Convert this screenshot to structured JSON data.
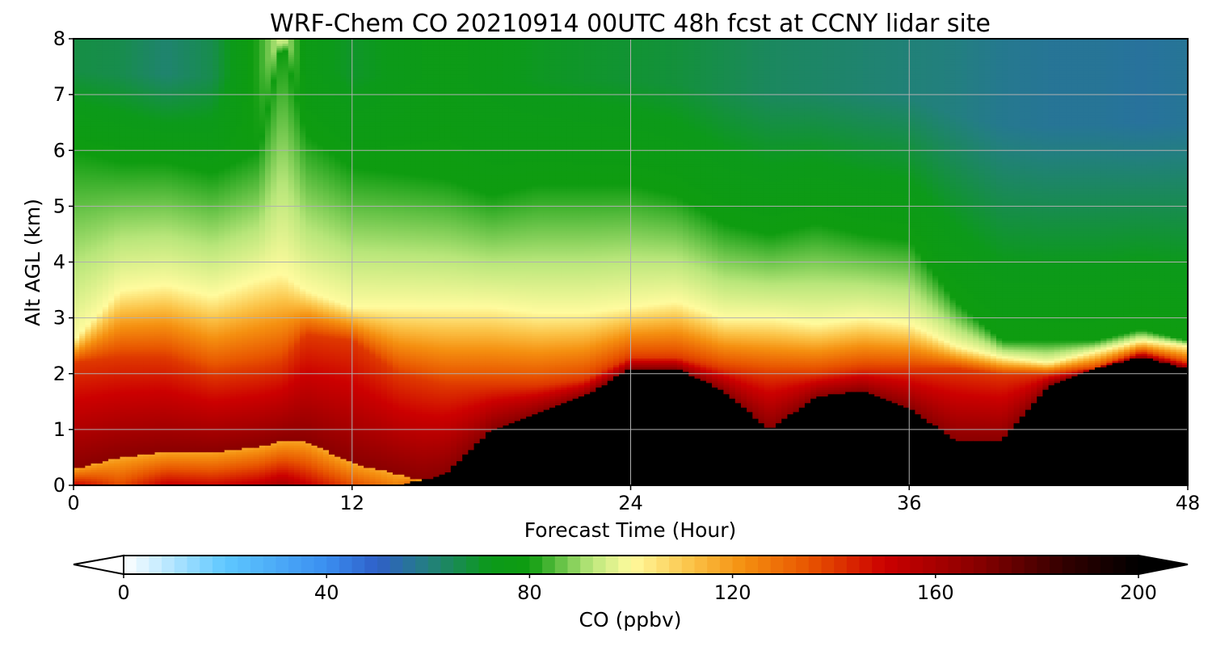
{
  "chart_data": {
    "type": "heatmap",
    "subtype": "filled-contour time-height cross section",
    "title": "WRF-Chem CO  20210914 00UTC 48h fcst at CCNY lidar site",
    "xlabel": "Forecast Time (Hour)",
    "ylabel": "Alt AGL (km)",
    "xlim": [
      0,
      48
    ],
    "ylim": [
      0,
      8
    ],
    "xticks": [
      "0",
      "12",
      "24",
      "36",
      "48"
    ],
    "yticks": [
      "0",
      "1",
      "2",
      "3",
      "4",
      "5",
      "6",
      "7",
      "8"
    ],
    "grid": true,
    "colorbar": {
      "label": "CO  (ppbv)",
      "orientation": "horizontal",
      "placement": "bottom",
      "range": [
        0,
        200
      ],
      "ticks": [
        "0",
        "40",
        "80",
        "120",
        "160",
        "200"
      ],
      "extend": "both",
      "under_color": "#ffffff",
      "over_color": "#000000",
      "color_stops": [
        {
          "v": 0,
          "color": "#ffffff"
        },
        {
          "v": 20,
          "color": "#5ec8ff"
        },
        {
          "v": 40,
          "color": "#3a8ef0"
        },
        {
          "v": 50,
          "color": "#2f5fc8"
        },
        {
          "v": 60,
          "color": "#237f80"
        },
        {
          "v": 72,
          "color": "#0c9a1a"
        },
        {
          "v": 80,
          "color": "#0e9c10"
        },
        {
          "v": 92,
          "color": "#b8e67a"
        },
        {
          "v": 100,
          "color": "#fffb9e"
        },
        {
          "v": 112,
          "color": "#fbc246"
        },
        {
          "v": 122,
          "color": "#f59010"
        },
        {
          "v": 135,
          "color": "#e85500"
        },
        {
          "v": 150,
          "color": "#cc0000"
        },
        {
          "v": 168,
          "color": "#8a0000"
        },
        {
          "v": 186,
          "color": "#300000"
        },
        {
          "v": 200,
          "color": "#000000"
        }
      ]
    },
    "fields": {
      "times": [
        0,
        2,
        4,
        6,
        8,
        9,
        10,
        12,
        14,
        16,
        18,
        20,
        22,
        24,
        26,
        28,
        30,
        32,
        34,
        36,
        38,
        40,
        42,
        44,
        46,
        48
      ],
      "base_ppbv": [
        175,
        150,
        175,
        170,
        178,
        188,
        175,
        150,
        130,
        200,
        200,
        200,
        200,
        200,
        200,
        200,
        195,
        200,
        200,
        200,
        200,
        200,
        200,
        200,
        200,
        200
      ],
      "low_layer_top_km": [
        0.3,
        0.5,
        0.6,
        0.6,
        0.7,
        0.8,
        0.8,
        0.4,
        0.2,
        0,
        0,
        0,
        0,
        0,
        0,
        0,
        0,
        0,
        0,
        0,
        0,
        0,
        0,
        0,
        0,
        0
      ],
      "black_top_km": [
        0,
        0,
        0,
        0,
        0,
        0,
        0,
        0,
        0,
        0.2,
        1.0,
        1.3,
        1.6,
        2.1,
        2.1,
        1.7,
        1.0,
        1.6,
        1.7,
        1.4,
        0.8,
        0.8,
        1.8,
        2.1,
        2.3,
        2.1
      ],
      "red_top_km": [
        2.2,
        2.3,
        2.3,
        2.0,
        2.1,
        2.2,
        2.7,
        2.6,
        2.0,
        1.8,
        1.8,
        1.8,
        1.9,
        2.3,
        2.3,
        2.1,
        2.0,
        2.0,
        2.1,
        2.1,
        2.1,
        2.0,
        2.0,
        2.1,
        2.4,
        2.2
      ],
      "pbl_top_km": [
        2.6,
        3.5,
        3.6,
        3.4,
        3.7,
        3.8,
        3.5,
        3.2,
        3.2,
        3.2,
        3.2,
        3.1,
        3.1,
        3.2,
        3.3,
        3.0,
        3.0,
        2.9,
        3.0,
        2.9,
        2.5,
        2.3,
        2.2,
        2.4,
        2.6,
        2.5
      ],
      "green_top_km": [
        6.0,
        5.8,
        5.8,
        5.6,
        6.0,
        8.0,
        6.3,
        5.7,
        5.6,
        5.5,
        5.2,
        5.4,
        5.4,
        5.4,
        5.2,
        4.7,
        4.5,
        4.7,
        4.5,
        4.4,
        3.3,
        2.6,
        2.6,
        2.6,
        2.8,
        2.6
      ],
      "top_ppbv": [
        67,
        66,
        62,
        66,
        82,
        95,
        75,
        70,
        73,
        75,
        73,
        71,
        70,
        69,
        68,
        66,
        64,
        63,
        62,
        61,
        60,
        58,
        57,
        57,
        56,
        57
      ]
    }
  }
}
